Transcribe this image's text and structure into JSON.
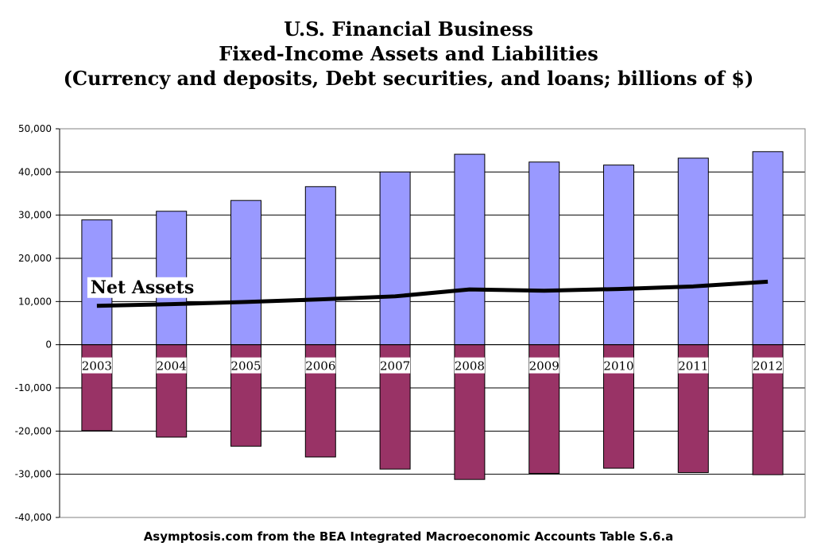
{
  "title_lines": [
    "U.S. Financial Business",
    "Fixed-Income Assets and Liabilities",
    "(Currency and deposits, Debt securities, and loans; billions of $)"
  ],
  "source_note": "Asymptosis.com from the BEA Integrated Macroeconomic Accounts Table S.6.a",
  "chart_data": {
    "type": "bar",
    "categories": [
      "2003",
      "2004",
      "2005",
      "2006",
      "2007",
      "2008",
      "2009",
      "2010",
      "2011",
      "2012"
    ],
    "series": [
      {
        "name": "",
        "kind": "bar",
        "color": "#9999ff",
        "values": [
          28900,
          30900,
          33400,
          36600,
          40000,
          44100,
          42300,
          41600,
          43200,
          44700
        ]
      },
      {
        "name": "",
        "kind": "bar",
        "color": "#993366",
        "values": [
          -19900,
          -21400,
          -23500,
          -26000,
          -28800,
          -31200,
          -29800,
          -28600,
          -29600,
          -30100
        ]
      },
      {
        "name": "Net Assets",
        "kind": "line",
        "color": "#000000",
        "values": [
          9000,
          9400,
          9900,
          10500,
          11200,
          12800,
          12500,
          12900,
          13500,
          14600
        ]
      }
    ],
    "ylim": [
      -40000,
      50000
    ],
    "yticks": [
      50000,
      40000,
      30000,
      20000,
      10000,
      0,
      -10000,
      -20000,
      -30000,
      -40000
    ],
    "ytick_labels": [
      "50,000",
      "40,000",
      "30,000",
      "20,000",
      "10,000",
      "0",
      "-10,000",
      "-20,000",
      "-30,000",
      "-40,000"
    ],
    "grid": true,
    "line_label": "Net Assets"
  }
}
